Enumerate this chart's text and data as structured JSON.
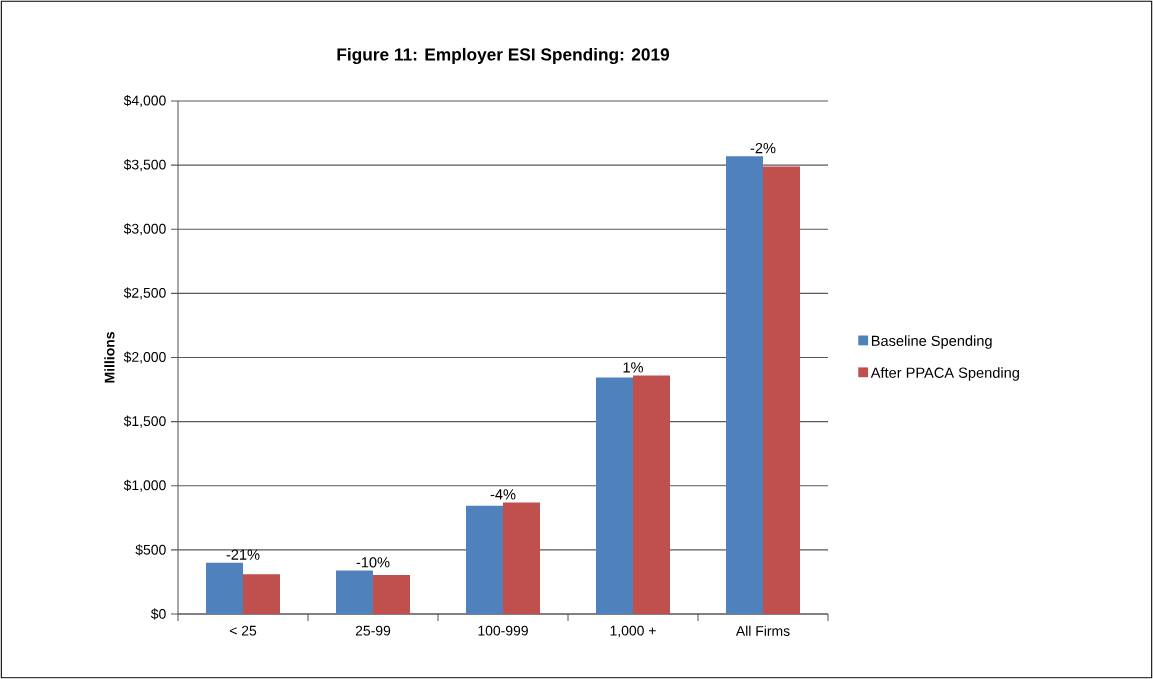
{
  "chart_data": {
    "type": "bar",
    "title": "Figure 11: Employer ESI Spending: 2019",
    "ylabel": "Millions",
    "categories": [
      "< 25",
      "25-99",
      "100-999",
      "1,000 +",
      "All Firms"
    ],
    "series": [
      {
        "name": "Baseline Spending",
        "color": "#4f81bd",
        "values": [
          400,
          340,
          845,
          1845,
          3570
        ]
      },
      {
        "name": "After PPACA Spending",
        "color": "#c0504d",
        "values": [
          310,
          305,
          870,
          1860,
          3490
        ]
      }
    ],
    "ylim": [
      0,
      4000
    ],
    "yticks": [
      {
        "value": 0,
        "label": "$0"
      },
      {
        "value": 500,
        "label": "$500"
      },
      {
        "value": 1000,
        "label": "$1,000"
      },
      {
        "value": 1500,
        "label": "$1,500"
      },
      {
        "value": 2000,
        "label": "$2,000"
      },
      {
        "value": 2500,
        "label": "$2,500"
      },
      {
        "value": 3000,
        "label": "$3,000"
      },
      {
        "value": 3500,
        "label": "$3,500"
      },
      {
        "value": 4000,
        "label": "$4,000"
      }
    ],
    "annotations": [
      {
        "text": "-21%",
        "x": "< 25",
        "y": 400
      },
      {
        "text": "-10%",
        "x": "25-99",
        "y": 340
      },
      {
        "text": "-4%",
        "x": "100-999",
        "y": 870
      },
      {
        "text": "1%",
        "x": "1,000 +",
        "y": 1860
      },
      {
        "text": "-2%",
        "x": "All Firms",
        "y": 3570
      }
    ],
    "grid": "y",
    "legend": "right"
  }
}
